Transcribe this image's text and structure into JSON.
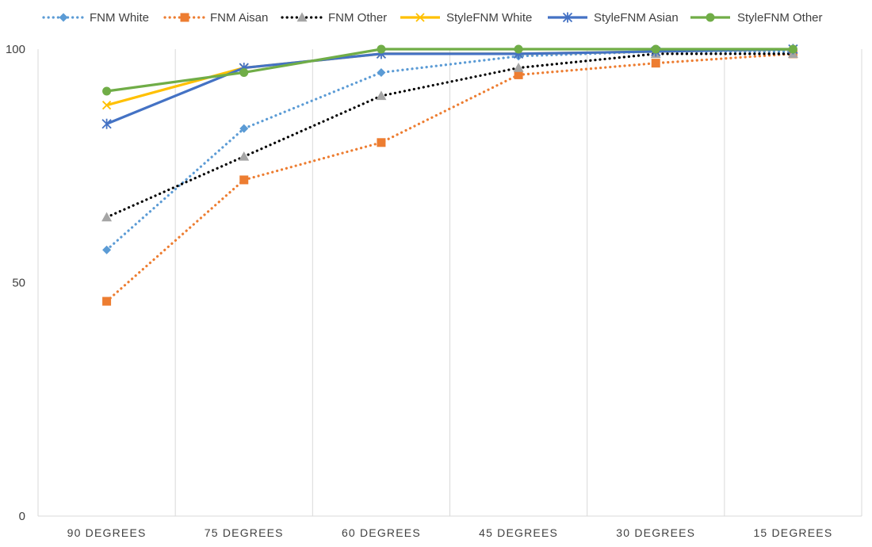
{
  "chart_data": {
    "type": "line",
    "title": "",
    "xlabel": "",
    "ylabel": "",
    "categories": [
      "90 DEGREES",
      "75 DEGREES",
      "60 DEGREES",
      "45 DEGREES",
      "30 DEGREES",
      "15 DEGREES"
    ],
    "ylim": [
      0,
      100
    ],
    "y_ticks": [
      "0",
      "50",
      "100"
    ],
    "grid": "vertical",
    "legend_position": "top",
    "series": [
      {
        "name": "FNM White",
        "values": [
          57,
          83,
          95,
          98.5,
          99.5,
          99.5
        ],
        "color": "#5b9bd5",
        "line_style": "dotted",
        "marker": "diamond"
      },
      {
        "name": "FNM  Aisan",
        "values": [
          46,
          72,
          80,
          94.5,
          97,
          99
        ],
        "color": "#ed7d31",
        "line_style": "dotted",
        "marker": "square"
      },
      {
        "name": "FNM Other",
        "values": [
          64,
          77,
          90,
          96,
          99,
          99
        ],
        "color": "#000000",
        "marker_color": "#a5a5a5",
        "line_style": "dotted",
        "marker": "triangle"
      },
      {
        "name": "StyleFNM White",
        "values": [
          88,
          96,
          99,
          99,
          99.5,
          100
        ],
        "color": "#ffc000",
        "line_style": "solid",
        "marker": "x"
      },
      {
        "name": "StyleFNM Asian",
        "values": [
          84,
          96,
          99,
          99,
          99.5,
          100
        ],
        "color": "#4472c4",
        "line_style": "solid",
        "marker": "star"
      },
      {
        "name": "StyleFNM Other",
        "values": [
          91,
          95,
          100,
          100,
          100,
          100
        ],
        "color": "#70ad47",
        "line_style": "solid",
        "marker": "circle"
      }
    ]
  }
}
